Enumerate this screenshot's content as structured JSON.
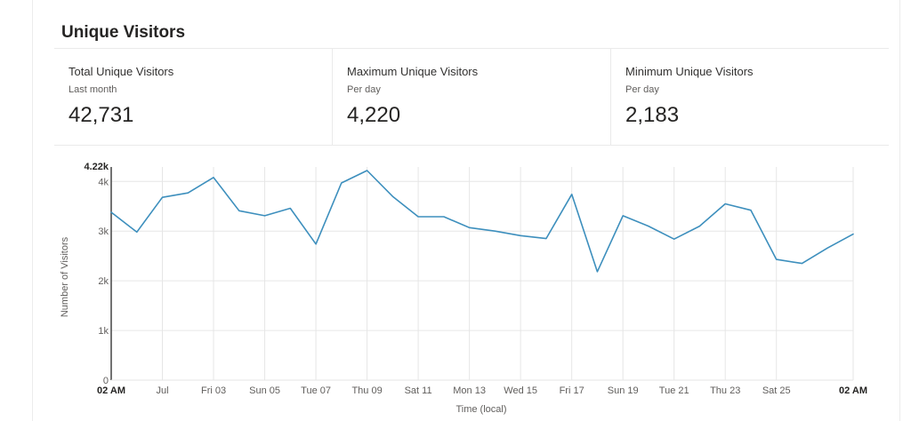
{
  "panel": {
    "title": "Unique Visitors"
  },
  "metrics": [
    {
      "label": "Total Unique Visitors",
      "sublabel": "Last month",
      "value": "42,731"
    },
    {
      "label": "Maximum Unique Visitors",
      "sublabel": "Per day",
      "value": "4,220"
    },
    {
      "label": "Minimum Unique Visitors",
      "sublabel": "Per day",
      "value": "2,183"
    }
  ],
  "colors": {
    "line": "#3d8fbd",
    "grid": "#e6e6e6",
    "axis": "#444444"
  },
  "chart_data": {
    "type": "line",
    "title": "",
    "xlabel": "Time (local)",
    "ylabel": "Number of Visitors",
    "ylim": [
      0,
      4220
    ],
    "y_ticks": [
      {
        "value": 0,
        "label": "0",
        "bold": false
      },
      {
        "value": 1000,
        "label": "1k",
        "bold": false
      },
      {
        "value": 2000,
        "label": "2k",
        "bold": false
      },
      {
        "value": 3000,
        "label": "3k",
        "bold": false
      },
      {
        "value": 4000,
        "label": "4k",
        "bold": false
      },
      {
        "value": 4220,
        "label": "4.22k",
        "bold": true
      }
    ],
    "x_ticks": [
      {
        "index": 0,
        "label": "02 AM",
        "bold": true
      },
      {
        "index": 2,
        "label": "Jul",
        "bold": false
      },
      {
        "index": 4,
        "label": "Fri 03",
        "bold": false
      },
      {
        "index": 6,
        "label": "Sun 05",
        "bold": false
      },
      {
        "index": 8,
        "label": "Tue 07",
        "bold": false
      },
      {
        "index": 10,
        "label": "Thu 09",
        "bold": false
      },
      {
        "index": 12,
        "label": "Sat 11",
        "bold": false
      },
      {
        "index": 14,
        "label": "Mon 13",
        "bold": false
      },
      {
        "index": 16,
        "label": "Wed 15",
        "bold": false
      },
      {
        "index": 18,
        "label": "Fri 17",
        "bold": false
      },
      {
        "index": 20,
        "label": "Sun 19",
        "bold": false
      },
      {
        "index": 22,
        "label": "Tue 21",
        "bold": false
      },
      {
        "index": 24,
        "label": "Thu 23",
        "bold": false
      },
      {
        "index": 26,
        "label": "Sat 25",
        "bold": false
      },
      {
        "index": 29,
        "label": "02 AM",
        "bold": true
      }
    ],
    "series": [
      {
        "values": [
          3380,
          2980,
          3680,
          3770,
          4080,
          3410,
          3310,
          3460,
          2740,
          3970,
          4220,
          3700,
          3290,
          3290,
          3070,
          3000,
          2910,
          2850,
          3740,
          2183,
          3310,
          3100,
          2840,
          3100,
          3550,
          3420,
          2430,
          2350,
          2660,
          2940
        ]
      }
    ]
  }
}
